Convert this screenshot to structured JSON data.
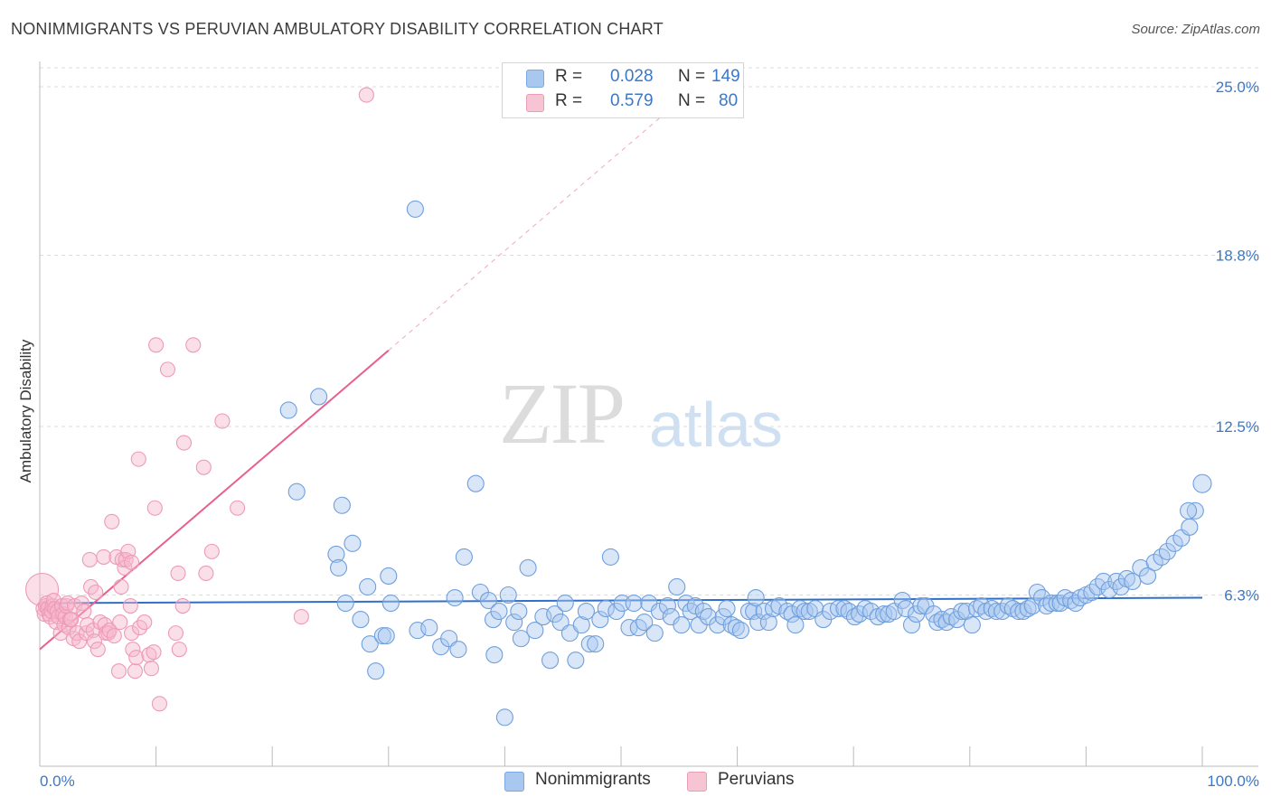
{
  "title": "NONIMMIGRANTS VS PERUVIAN AMBULATORY DISABILITY CORRELATION CHART",
  "source": "Source: ZipAtlas.com",
  "watermark": {
    "zip": "ZIP",
    "atlas": "atlas"
  },
  "legend": {
    "rows": [
      {
        "r_label": "R =",
        "r_value": "0.028",
        "n_label": "N =",
        "n_value": "149",
        "color": "#a8c8f0"
      },
      {
        "r_label": "R =",
        "r_value": "0.579",
        "n_label": "N =",
        "n_value": "80",
        "color": "#f7b8cc"
      }
    ]
  },
  "bottom_legend": {
    "series1": "Nonimmigrants",
    "series2": "Peruvians"
  },
  "chart_data": {
    "type": "scatter",
    "title": "NONIMMIGRANTS VS PERUVIAN AMBULATORY DISABILITY CORRELATION CHART",
    "xlabel": "",
    "ylabel": "Ambulatory Disability",
    "xlim": [
      0,
      100
    ],
    "ylim": [
      0,
      25.7
    ],
    "x_tick_labels": [
      "0.0%",
      "100.0%"
    ],
    "y_ticks": [
      6.3,
      12.5,
      18.8,
      25.0
    ],
    "y_tick_labels": [
      "6.3%",
      "12.5%",
      "18.8%",
      "25.0%"
    ],
    "grid": true,
    "legend_position": "top-center",
    "colors": {
      "nonimmigrants": "#a8c8f0",
      "nonimmigrants_line": "#3070c8",
      "peruvians": "#f7b8cc",
      "peruvians_line": "#e8608c"
    },
    "series": [
      {
        "name": "Nonimmigrants",
        "trend": {
          "x": [
            0,
            100
          ],
          "y": [
            6.0,
            6.2
          ]
        },
        "points": [
          [
            21.4,
            13.1
          ],
          [
            22.1,
            10.1
          ],
          [
            24.0,
            13.6
          ],
          [
            26.0,
            9.6
          ],
          [
            26.9,
            8.2
          ],
          [
            25.5,
            7.8
          ],
          [
            25.7,
            7.3
          ],
          [
            26.3,
            6.0
          ],
          [
            27.6,
            5.4
          ],
          [
            28.4,
            4.5
          ],
          [
            28.2,
            6.6
          ],
          [
            28.9,
            3.5
          ],
          [
            29.5,
            4.8
          ],
          [
            29.8,
            4.8
          ],
          [
            30.2,
            6.0
          ],
          [
            32.3,
            20.5
          ],
          [
            32.5,
            5.0
          ],
          [
            33.5,
            5.1
          ],
          [
            34.5,
            4.4
          ],
          [
            35.7,
            6.2
          ],
          [
            35.2,
            4.7
          ],
          [
            36.0,
            4.3
          ],
          [
            36.5,
            7.7
          ],
          [
            37.5,
            10.4
          ],
          [
            37.9,
            6.4
          ],
          [
            38.6,
            6.1
          ],
          [
            39.0,
            5.4
          ],
          [
            39.1,
            4.1
          ],
          [
            39.5,
            5.7
          ],
          [
            40.3,
            6.3
          ],
          [
            40.8,
            5.3
          ],
          [
            41.2,
            5.7
          ],
          [
            41.4,
            4.7
          ],
          [
            42.0,
            7.3
          ],
          [
            42.6,
            5.0
          ],
          [
            43.3,
            5.5
          ],
          [
            43.9,
            3.9
          ],
          [
            44.3,
            5.6
          ],
          [
            44.8,
            5.3
          ],
          [
            45.2,
            6.0
          ],
          [
            45.6,
            4.9
          ],
          [
            46.1,
            3.9
          ],
          [
            46.6,
            5.2
          ],
          [
            47.0,
            5.7
          ],
          [
            47.3,
            4.5
          ],
          [
            47.8,
            4.5
          ],
          [
            48.2,
            5.4
          ],
          [
            48.7,
            5.8
          ],
          [
            49.1,
            7.7
          ],
          [
            49.6,
            5.7
          ],
          [
            50.1,
            6.0
          ],
          [
            50.7,
            5.1
          ],
          [
            51.1,
            6.0
          ],
          [
            51.5,
            5.1
          ],
          [
            52.0,
            5.3
          ],
          [
            52.4,
            6.0
          ],
          [
            52.9,
            4.9
          ],
          [
            53.3,
            5.7
          ],
          [
            54.0,
            5.9
          ],
          [
            54.3,
            5.5
          ],
          [
            54.8,
            6.6
          ],
          [
            55.2,
            5.2
          ],
          [
            55.6,
            6.0
          ],
          [
            56.0,
            5.7
          ],
          [
            56.4,
            5.9
          ],
          [
            56.7,
            5.2
          ],
          [
            57.1,
            5.7
          ],
          [
            57.5,
            5.5
          ],
          [
            58.3,
            5.2
          ],
          [
            58.8,
            5.5
          ],
          [
            59.1,
            5.8
          ],
          [
            59.5,
            5.2
          ],
          [
            59.9,
            5.1
          ],
          [
            60.3,
            5.0
          ],
          [
            61.0,
            5.7
          ],
          [
            61.4,
            5.7
          ],
          [
            61.6,
            6.2
          ],
          [
            61.8,
            5.3
          ],
          [
            62.3,
            5.7
          ],
          [
            62.7,
            5.3
          ],
          [
            63.1,
            5.8
          ],
          [
            63.6,
            5.9
          ],
          [
            64.3,
            5.7
          ],
          [
            64.7,
            5.6
          ],
          [
            65.0,
            5.2
          ],
          [
            65.4,
            5.8
          ],
          [
            65.8,
            5.7
          ],
          [
            66.2,
            5.7
          ],
          [
            66.7,
            5.8
          ],
          [
            67.4,
            5.4
          ],
          [
            68.0,
            5.7
          ],
          [
            68.7,
            5.8
          ],
          [
            69.2,
            5.8
          ],
          [
            69.6,
            5.7
          ],
          [
            70.1,
            5.5
          ],
          [
            70.5,
            5.6
          ],
          [
            71.0,
            5.8
          ],
          [
            71.5,
            5.7
          ],
          [
            72.1,
            5.5
          ],
          [
            72.6,
            5.6
          ],
          [
            73.0,
            5.6
          ],
          [
            73.5,
            5.7
          ],
          [
            74.2,
            6.1
          ],
          [
            74.5,
            5.8
          ],
          [
            75.0,
            5.2
          ],
          [
            75.4,
            5.6
          ],
          [
            75.8,
            5.9
          ],
          [
            76.2,
            5.9
          ],
          [
            76.9,
            5.6
          ],
          [
            77.2,
            5.3
          ],
          [
            77.6,
            5.4
          ],
          [
            78.0,
            5.3
          ],
          [
            78.4,
            5.5
          ],
          [
            78.9,
            5.4
          ],
          [
            79.3,
            5.7
          ],
          [
            79.7,
            5.7
          ],
          [
            80.2,
            5.2
          ],
          [
            80.6,
            5.8
          ],
          [
            81.0,
            5.9
          ],
          [
            81.4,
            5.7
          ],
          [
            81.9,
            5.8
          ],
          [
            82.3,
            5.7
          ],
          [
            82.8,
            5.7
          ],
          [
            83.3,
            5.9
          ],
          [
            83.7,
            5.8
          ],
          [
            84.2,
            5.7
          ],
          [
            84.6,
            5.7
          ],
          [
            85.0,
            5.8
          ],
          [
            85.4,
            5.9
          ],
          [
            85.8,
            6.4
          ],
          [
            86.2,
            6.2
          ],
          [
            86.6,
            5.9
          ],
          [
            87.0,
            6.0
          ],
          [
            87.5,
            6.0
          ],
          [
            87.8,
            6.0
          ],
          [
            88.2,
            6.2
          ],
          [
            88.7,
            6.1
          ],
          [
            89.1,
            6.0
          ],
          [
            89.5,
            6.2
          ],
          [
            90.0,
            6.3
          ],
          [
            90.5,
            6.4
          ],
          [
            91.0,
            6.6
          ],
          [
            91.5,
            6.8
          ],
          [
            92.0,
            6.5
          ],
          [
            92.6,
            6.8
          ],
          [
            93.0,
            6.6
          ],
          [
            93.5,
            6.9
          ],
          [
            94.0,
            6.8
          ],
          [
            94.7,
            7.3
          ],
          [
            95.3,
            7.0
          ],
          [
            95.9,
            7.5
          ],
          [
            96.5,
            7.7
          ],
          [
            97.0,
            7.9
          ],
          [
            97.6,
            8.2
          ],
          [
            98.2,
            8.4
          ],
          [
            98.9,
            8.8
          ],
          [
            99.4,
            9.4
          ],
          [
            98.8,
            9.4
          ],
          [
            100.0,
            10.4
          ],
          [
            40.0,
            1.8
          ],
          [
            30.0,
            7.0
          ]
        ]
      },
      {
        "name": "Peruvians",
        "trend": {
          "x": [
            0,
            30
          ],
          "y": [
            4.3,
            15.3
          ]
        },
        "points": [
          [
            0.2,
            6.5
          ],
          [
            0.3,
            5.8
          ],
          [
            0.4,
            5.6
          ],
          [
            0.5,
            5.9
          ],
          [
            0.6,
            6.0
          ],
          [
            0.7,
            5.8
          ],
          [
            0.8,
            5.6
          ],
          [
            0.9,
            5.5
          ],
          [
            1.0,
            5.7
          ],
          [
            1.1,
            5.9
          ],
          [
            1.2,
            6.1
          ],
          [
            1.3,
            5.8
          ],
          [
            1.4,
            5.3
          ],
          [
            1.5,
            5.7
          ],
          [
            1.6,
            5.5
          ],
          [
            1.8,
            4.9
          ],
          [
            1.9,
            5.9
          ],
          [
            2.0,
            5.6
          ],
          [
            2.1,
            5.2
          ],
          [
            2.2,
            5.5
          ],
          [
            2.3,
            5.9
          ],
          [
            2.4,
            6.0
          ],
          [
            2.5,
            5.1
          ],
          [
            2.6,
            5.4
          ],
          [
            2.7,
            5.4
          ],
          [
            2.9,
            4.7
          ],
          [
            3.0,
            5.9
          ],
          [
            3.2,
            4.9
          ],
          [
            3.4,
            4.6
          ],
          [
            3.6,
            6.0
          ],
          [
            3.8,
            5.7
          ],
          [
            4.0,
            4.9
          ],
          [
            4.1,
            5.2
          ],
          [
            4.3,
            7.6
          ],
          [
            4.4,
            6.6
          ],
          [
            4.6,
            5.0
          ],
          [
            4.7,
            4.6
          ],
          [
            4.8,
            6.4
          ],
          [
            5.0,
            4.3
          ],
          [
            5.2,
            5.3
          ],
          [
            5.5,
            7.7
          ],
          [
            5.6,
            5.2
          ],
          [
            5.7,
            4.9
          ],
          [
            5.9,
            4.9
          ],
          [
            6.0,
            5.0
          ],
          [
            6.2,
            9.0
          ],
          [
            6.4,
            4.8
          ],
          [
            6.6,
            7.7
          ],
          [
            6.8,
            3.5
          ],
          [
            6.9,
            5.3
          ],
          [
            7.0,
            6.6
          ],
          [
            7.1,
            7.6
          ],
          [
            7.3,
            7.3
          ],
          [
            7.4,
            7.6
          ],
          [
            7.6,
            7.9
          ],
          [
            7.8,
            5.9
          ],
          [
            7.9,
            7.5
          ],
          [
            7.9,
            4.9
          ],
          [
            8.0,
            4.3
          ],
          [
            8.2,
            3.5
          ],
          [
            8.3,
            4.0
          ],
          [
            8.5,
            11.3
          ],
          [
            8.6,
            5.1
          ],
          [
            9.0,
            5.3
          ],
          [
            9.4,
            4.1
          ],
          [
            9.6,
            3.6
          ],
          [
            9.8,
            4.2
          ],
          [
            9.9,
            9.5
          ],
          [
            10.0,
            15.5
          ],
          [
            10.3,
            2.3
          ],
          [
            11.0,
            14.6
          ],
          [
            11.7,
            4.9
          ],
          [
            11.9,
            7.1
          ],
          [
            12.0,
            4.3
          ],
          [
            12.3,
            5.9
          ],
          [
            12.4,
            11.9
          ],
          [
            13.2,
            15.5
          ],
          [
            14.1,
            11.0
          ],
          [
            14.3,
            7.1
          ],
          [
            14.8,
            7.9
          ],
          [
            15.7,
            12.7
          ],
          [
            17.0,
            9.5
          ],
          [
            22.5,
            5.5
          ],
          [
            28.1,
            24.7
          ]
        ]
      }
    ]
  }
}
